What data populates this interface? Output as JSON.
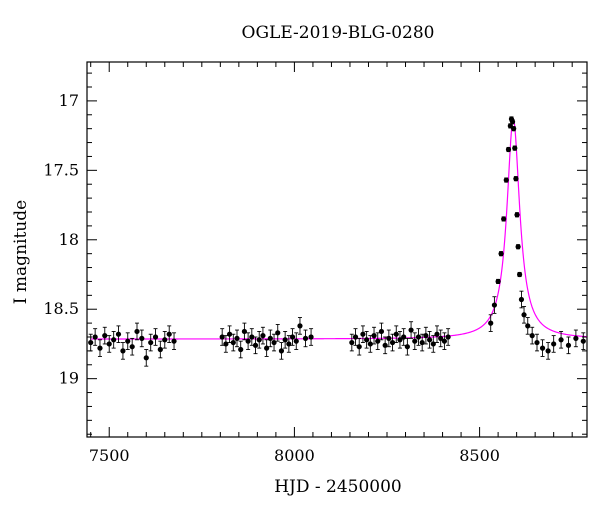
{
  "chart_data": {
    "type": "scatter",
    "title": "OGLE-2019-BLG-0280",
    "xlabel": "HJD - 2450000",
    "ylabel": "I magnitude",
    "xlim": [
      7440,
      8790
    ],
    "ylim": [
      19.42,
      16.72
    ],
    "y_inverted": true,
    "xticks": [
      7500,
      8000,
      8500
    ],
    "yticks": [
      17,
      17.5,
      18,
      18.5,
      19
    ],
    "ytick_labels": [
      "17",
      "17.5",
      "18",
      "18.5",
      "19"
    ],
    "grid": false,
    "legend": "none",
    "colors": {
      "points": "#000000",
      "model": "#ff00ff"
    },
    "series": [
      {
        "kind": "points_with_errorbars",
        "x": [
          7450,
          7462,
          7475,
          7488,
          7500,
          7512,
          7525,
          7537,
          7550,
          7562,
          7575,
          7588,
          7600,
          7612,
          7625,
          7638,
          7650,
          7662,
          7675,
          7805,
          7815,
          7825,
          7835,
          7845,
          7855,
          7865,
          7875,
          7885,
          7895,
          7905,
          7915,
          7925,
          7935,
          7945,
          7955,
          7965,
          7975,
          7985,
          7995,
          8005,
          8015,
          8030,
          8045,
          8155,
          8165,
          8175,
          8185,
          8195,
          8205,
          8215,
          8225,
          8235,
          8245,
          8255,
          8265,
          8275,
          8285,
          8295,
          8305,
          8315,
          8325,
          8335,
          8345,
          8355,
          8365,
          8375,
          8385,
          8395,
          8405,
          8415,
          8530,
          8540,
          8550,
          8558,
          8565,
          8572,
          8578,
          8583,
          8586,
          8589,
          8592,
          8595,
          8598,
          8601,
          8604,
          8608,
          8613,
          8620,
          8630,
          8642,
          8655,
          8670,
          8685,
          8700,
          8720,
          8740,
          8760,
          8780
        ],
        "y": [
          18.74,
          18.7,
          18.78,
          18.69,
          18.75,
          18.72,
          18.68,
          18.8,
          18.73,
          18.77,
          18.66,
          18.71,
          18.85,
          18.74,
          18.7,
          18.79,
          18.72,
          18.68,
          18.73,
          18.7,
          18.75,
          18.68,
          18.74,
          18.71,
          18.79,
          18.66,
          18.73,
          18.7,
          18.76,
          18.72,
          18.69,
          18.78,
          18.71,
          18.74,
          18.67,
          18.8,
          18.72,
          18.75,
          18.7,
          18.73,
          18.62,
          18.71,
          18.7,
          18.74,
          18.7,
          18.77,
          18.68,
          18.72,
          18.75,
          18.69,
          18.73,
          18.66,
          18.76,
          18.71,
          18.74,
          18.68,
          18.72,
          18.7,
          18.77,
          18.65,
          18.73,
          18.7,
          18.74,
          18.69,
          18.72,
          18.75,
          18.68,
          18.71,
          18.73,
          18.7,
          18.6,
          18.47,
          18.3,
          18.1,
          17.85,
          17.57,
          17.35,
          17.18,
          17.13,
          17.15,
          17.2,
          17.34,
          17.56,
          17.82,
          18.05,
          18.25,
          18.43,
          18.54,
          18.62,
          18.69,
          18.74,
          18.78,
          18.8,
          18.75,
          18.72,
          18.76,
          18.71,
          18.73
        ]
      },
      {
        "kind": "model_curve",
        "name": "",
        "baseline": 18.715,
        "peak_x": 8591,
        "peak_y": 17.13
      }
    ]
  }
}
